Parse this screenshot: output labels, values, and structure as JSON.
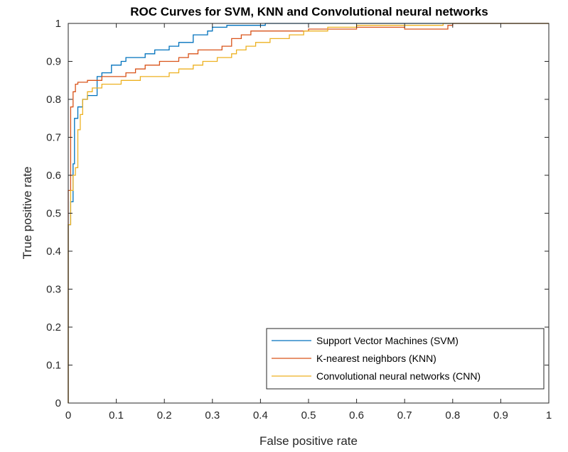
{
  "chart_data": {
    "type": "line",
    "title": "ROC Curves for SVM, KNN and Convolutional neural networks",
    "xlabel": "False positive rate",
    "ylabel": "True positive rate",
    "xlim": [
      0,
      1
    ],
    "ylim": [
      0,
      1
    ],
    "xticks": [
      "0",
      "0.1",
      "0.2",
      "0.3",
      "0.4",
      "0.5",
      "0.6",
      "0.7",
      "0.8",
      "0.9",
      "1"
    ],
    "yticks": [
      "0",
      "0.1",
      "0.2",
      "0.3",
      "0.4",
      "0.5",
      "0.6",
      "0.7",
      "0.8",
      "0.9",
      "1"
    ],
    "grid": false,
    "legend_position": "bottom-right",
    "series": [
      {
        "name": "Support Vector Machines (SVM)",
        "color": "#0072BD",
        "points": [
          [
            0,
            0
          ],
          [
            0,
            0.47
          ],
          [
            0.005,
            0.47
          ],
          [
            0.005,
            0.53
          ],
          [
            0.01,
            0.53
          ],
          [
            0.01,
            0.63
          ],
          [
            0.013,
            0.63
          ],
          [
            0.013,
            0.75
          ],
          [
            0.02,
            0.75
          ],
          [
            0.02,
            0.78
          ],
          [
            0.03,
            0.78
          ],
          [
            0.03,
            0.8
          ],
          [
            0.04,
            0.8
          ],
          [
            0.04,
            0.81
          ],
          [
            0.06,
            0.81
          ],
          [
            0.06,
            0.86
          ],
          [
            0.07,
            0.86
          ],
          [
            0.07,
            0.87
          ],
          [
            0.09,
            0.87
          ],
          [
            0.09,
            0.89
          ],
          [
            0.11,
            0.89
          ],
          [
            0.11,
            0.9
          ],
          [
            0.12,
            0.9
          ],
          [
            0.12,
            0.91
          ],
          [
            0.16,
            0.91
          ],
          [
            0.16,
            0.92
          ],
          [
            0.18,
            0.92
          ],
          [
            0.18,
            0.93
          ],
          [
            0.21,
            0.93
          ],
          [
            0.21,
            0.94
          ],
          [
            0.23,
            0.94
          ],
          [
            0.23,
            0.95
          ],
          [
            0.26,
            0.95
          ],
          [
            0.26,
            0.97
          ],
          [
            0.29,
            0.97
          ],
          [
            0.29,
            0.98
          ],
          [
            0.3,
            0.98
          ],
          [
            0.3,
            0.99
          ],
          [
            0.33,
            0.99
          ],
          [
            0.33,
            0.995
          ],
          [
            0.41,
            0.995
          ],
          [
            0.41,
            1.0
          ],
          [
            1.0,
            1.0
          ]
        ]
      },
      {
        "name": "K-nearest neighbors (KNN)",
        "color": "#D95319",
        "points": [
          [
            0,
            0
          ],
          [
            0,
            0.56
          ],
          [
            0.005,
            0.56
          ],
          [
            0.005,
            0.78
          ],
          [
            0.01,
            0.78
          ],
          [
            0.01,
            0.82
          ],
          [
            0.015,
            0.82
          ],
          [
            0.015,
            0.84
          ],
          [
            0.02,
            0.84
          ],
          [
            0.02,
            0.845
          ],
          [
            0.04,
            0.845
          ],
          [
            0.04,
            0.85
          ],
          [
            0.07,
            0.85
          ],
          [
            0.07,
            0.86
          ],
          [
            0.12,
            0.86
          ],
          [
            0.12,
            0.87
          ],
          [
            0.14,
            0.87
          ],
          [
            0.14,
            0.88
          ],
          [
            0.16,
            0.88
          ],
          [
            0.16,
            0.89
          ],
          [
            0.19,
            0.89
          ],
          [
            0.19,
            0.9
          ],
          [
            0.23,
            0.9
          ],
          [
            0.23,
            0.91
          ],
          [
            0.25,
            0.91
          ],
          [
            0.25,
            0.92
          ],
          [
            0.27,
            0.92
          ],
          [
            0.27,
            0.93
          ],
          [
            0.32,
            0.93
          ],
          [
            0.32,
            0.94
          ],
          [
            0.34,
            0.94
          ],
          [
            0.34,
            0.96
          ],
          [
            0.36,
            0.96
          ],
          [
            0.36,
            0.97
          ],
          [
            0.38,
            0.97
          ],
          [
            0.38,
            0.98
          ],
          [
            0.5,
            0.98
          ],
          [
            0.5,
            0.985
          ],
          [
            0.6,
            0.985
          ],
          [
            0.6,
            0.99
          ],
          [
            0.7,
            0.99
          ],
          [
            0.7,
            0.985
          ],
          [
            0.79,
            0.985
          ],
          [
            0.79,
            0.995
          ],
          [
            0.8,
            0.995
          ],
          [
            0.8,
            1.0
          ],
          [
            1.0,
            1.0
          ]
        ]
      },
      {
        "name": "Convolutional neural networks (CNN)",
        "color": "#EDB120",
        "points": [
          [
            0,
            0
          ],
          [
            0,
            0.47
          ],
          [
            0.005,
            0.47
          ],
          [
            0.005,
            0.56
          ],
          [
            0.01,
            0.56
          ],
          [
            0.01,
            0.6
          ],
          [
            0.015,
            0.6
          ],
          [
            0.015,
            0.62
          ],
          [
            0.02,
            0.62
          ],
          [
            0.02,
            0.72
          ],
          [
            0.025,
            0.72
          ],
          [
            0.025,
            0.76
          ],
          [
            0.03,
            0.76
          ],
          [
            0.03,
            0.8
          ],
          [
            0.04,
            0.8
          ],
          [
            0.04,
            0.82
          ],
          [
            0.05,
            0.82
          ],
          [
            0.05,
            0.83
          ],
          [
            0.07,
            0.83
          ],
          [
            0.07,
            0.84
          ],
          [
            0.11,
            0.84
          ],
          [
            0.11,
            0.85
          ],
          [
            0.15,
            0.85
          ],
          [
            0.15,
            0.86
          ],
          [
            0.21,
            0.86
          ],
          [
            0.21,
            0.87
          ],
          [
            0.23,
            0.87
          ],
          [
            0.23,
            0.88
          ],
          [
            0.26,
            0.88
          ],
          [
            0.26,
            0.89
          ],
          [
            0.28,
            0.89
          ],
          [
            0.28,
            0.9
          ],
          [
            0.31,
            0.9
          ],
          [
            0.31,
            0.91
          ],
          [
            0.34,
            0.91
          ],
          [
            0.34,
            0.92
          ],
          [
            0.35,
            0.92
          ],
          [
            0.35,
            0.93
          ],
          [
            0.37,
            0.93
          ],
          [
            0.37,
            0.94
          ],
          [
            0.39,
            0.94
          ],
          [
            0.39,
            0.95
          ],
          [
            0.42,
            0.95
          ],
          [
            0.42,
            0.96
          ],
          [
            0.46,
            0.96
          ],
          [
            0.46,
            0.97
          ],
          [
            0.49,
            0.97
          ],
          [
            0.49,
            0.98
          ],
          [
            0.54,
            0.98
          ],
          [
            0.54,
            0.99
          ],
          [
            0.6,
            0.99
          ],
          [
            0.6,
            0.995
          ],
          [
            0.78,
            0.995
          ],
          [
            0.78,
            1.0
          ],
          [
            1.0,
            1.0
          ]
        ]
      }
    ]
  }
}
